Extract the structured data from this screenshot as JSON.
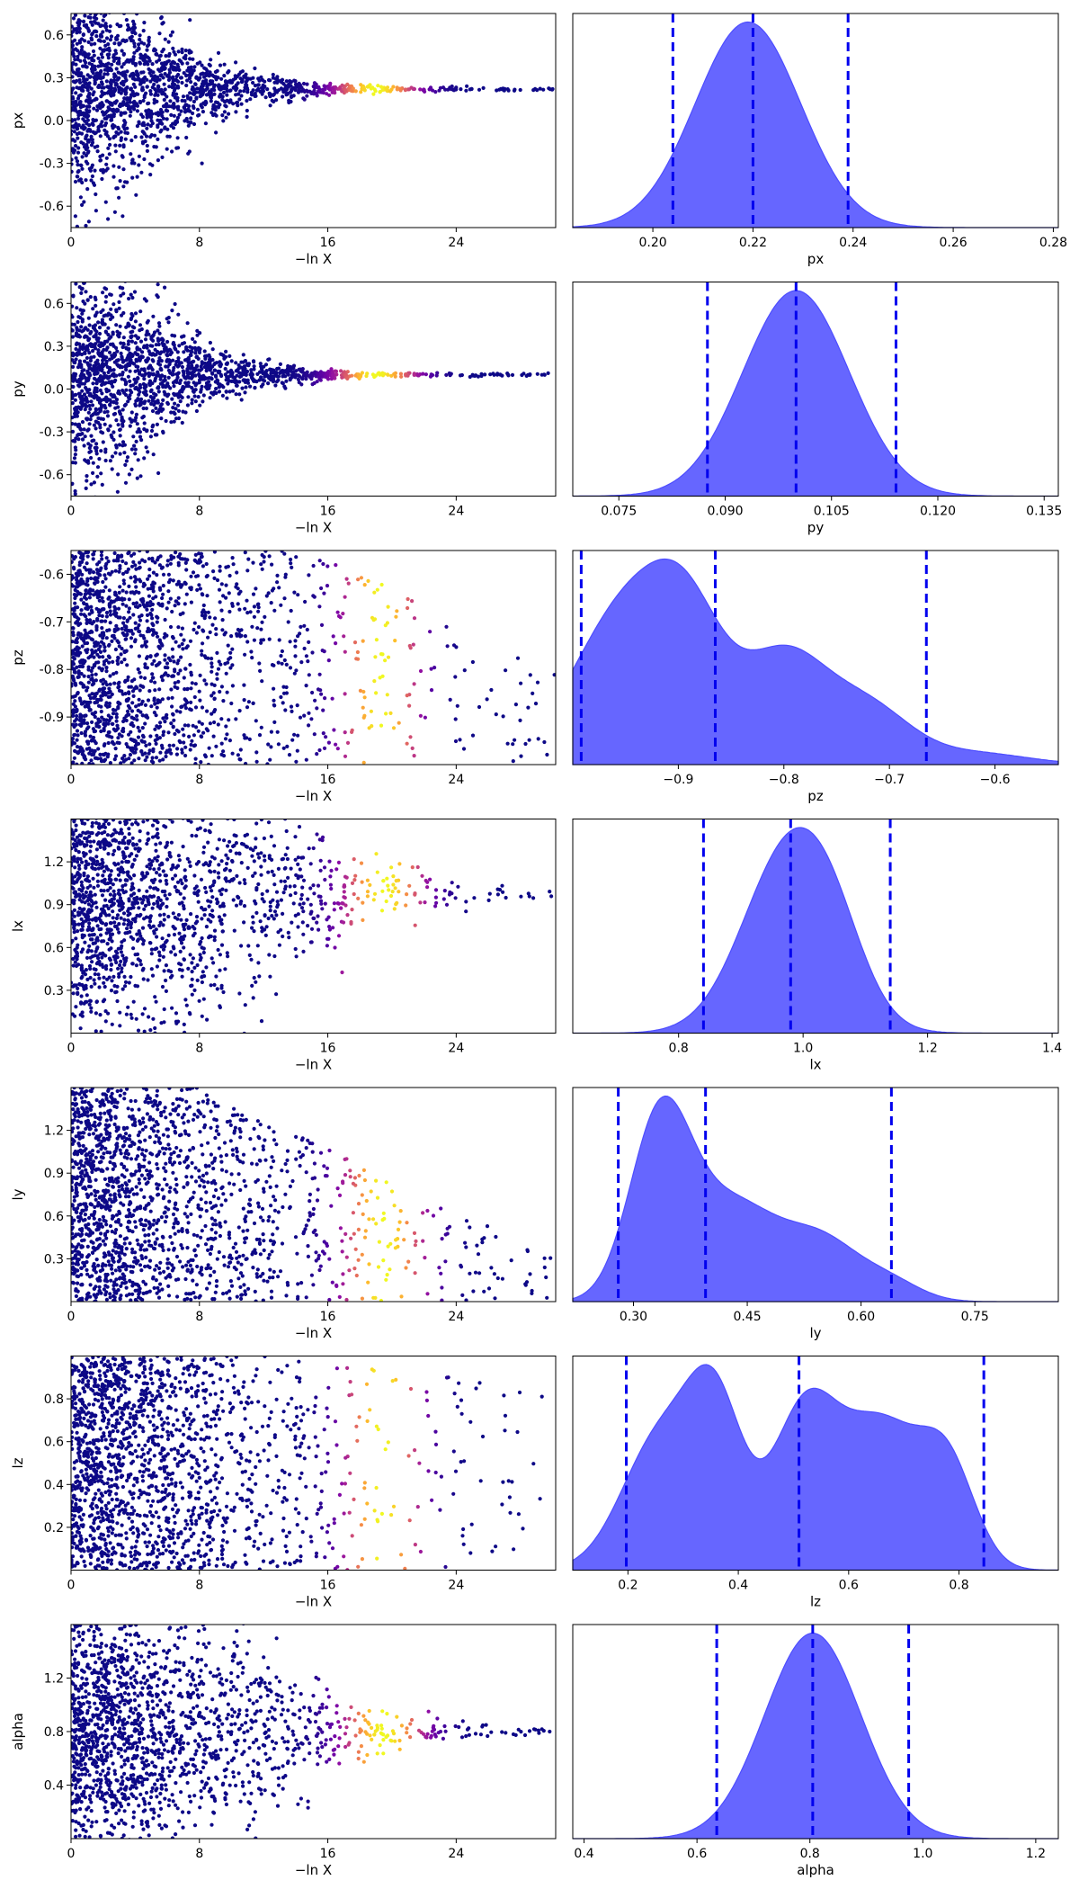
{
  "colors": {
    "density_fill": "#6666ff",
    "density_edge": "#4d4dff",
    "quantile_line": "#0000ee",
    "trace_colormap": "plasma",
    "background": "#ffffff"
  },
  "chart_data": [
    {
      "type": "scatter",
      "name": "trace-px",
      "xlabel": "−ln X",
      "ylabel": "px",
      "xlim": [
        0,
        30.2
      ],
      "ylim": [
        -0.75,
        0.75
      ],
      "xticks": [
        "0",
        "8",
        "16",
        "24"
      ],
      "xtick_values": [
        0,
        8,
        16,
        24
      ],
      "yticks": [
        "-0.6",
        "-0.3",
        "0.0",
        "0.3",
        "0.6"
      ],
      "ytick_values": [
        -0.6,
        -0.3,
        0.0,
        0.3,
        0.6
      ],
      "converged_value": 0.22,
      "initial_spread": 0.75,
      "width_profile": [
        [
          0,
          1.0
        ],
        [
          4,
          0.72
        ],
        [
          8,
          0.32
        ],
        [
          12,
          0.12
        ],
        [
          16,
          0.05
        ],
        [
          20,
          0.025
        ],
        [
          24,
          0.02
        ],
        [
          30,
          0.01
        ]
      ],
      "bright_center": 19.0,
      "bright_width": 2.5,
      "max_x": 30.2,
      "grid": false
    },
    {
      "type": "area",
      "name": "density-px",
      "xlabel": "px",
      "xlim": [
        0.184,
        0.281
      ],
      "xticks": [
        "0.20",
        "0.22",
        "0.24",
        "0.26",
        "0.28"
      ],
      "xtick_values": [
        0.2,
        0.22,
        0.24,
        0.26,
        0.28
      ],
      "quantiles": [
        0.204,
        0.22,
        0.239
      ],
      "peaks": [
        [
          0.219,
          0.0105,
          1.0
        ]
      ],
      "grid": false
    },
    {
      "type": "scatter",
      "name": "trace-py",
      "xlabel": "−ln X",
      "ylabel": "py",
      "xlim": [
        0,
        30.2
      ],
      "ylim": [
        -0.75,
        0.75
      ],
      "xticks": [
        "0",
        "8",
        "16",
        "24"
      ],
      "xtick_values": [
        0,
        8,
        16,
        24
      ],
      "yticks": [
        "-0.6",
        "-0.3",
        "0.0",
        "0.3",
        "0.6"
      ],
      "ytick_values": [
        -0.6,
        -0.3,
        0.0,
        0.3,
        0.6
      ],
      "converged_value": 0.1,
      "initial_spread": 0.75,
      "width_profile": [
        [
          0,
          1.0
        ],
        [
          4,
          0.7
        ],
        [
          8,
          0.3
        ],
        [
          12,
          0.1
        ],
        [
          16,
          0.04
        ],
        [
          20,
          0.02
        ],
        [
          24,
          0.015
        ],
        [
          30,
          0.01
        ]
      ],
      "bright_center": 19.0,
      "bright_width": 2.5,
      "max_x": 30.2,
      "grid": false
    },
    {
      "type": "area",
      "name": "density-py",
      "xlabel": "py",
      "xlim": [
        0.0685,
        0.137
      ],
      "xticks": [
        "0.075",
        "0.090",
        "0.105",
        "0.120",
        "0.135"
      ],
      "xtick_values": [
        0.075,
        0.09,
        0.105,
        0.12,
        0.135
      ],
      "quantiles": [
        0.0875,
        0.1,
        0.1141
      ],
      "peaks": [
        [
          0.1,
          0.0075,
          1.0
        ]
      ],
      "grid": false
    },
    {
      "type": "scatter",
      "name": "trace-pz",
      "xlabel": "−ln X",
      "ylabel": "pz",
      "xlim": [
        0,
        30.2
      ],
      "ylim": [
        -1.0,
        -0.55
      ],
      "xticks": [
        "0",
        "8",
        "16",
        "24"
      ],
      "xtick_values": [
        0,
        8,
        16,
        24
      ],
      "yticks": [
        "-0.6",
        "-0.7",
        "-0.8",
        "-0.9"
      ],
      "ytick_values": [
        -0.6,
        -0.7,
        -0.8,
        -0.9
      ],
      "band": true,
      "band_bottom": -1.0,
      "band_top": -0.55,
      "band_taper_start": 16,
      "band_top_end": -0.8,
      "bright_center": 19.3,
      "bright_width": 2.3,
      "max_x": 30.2,
      "grid": false
    },
    {
      "type": "area",
      "name": "density-pz",
      "xlabel": "pz",
      "xlim": [
        -1.0,
        -0.54
      ],
      "xticks": [
        "−0.9",
        "−0.8",
        "−0.7",
        "−0.6"
      ],
      "xtick_values": [
        -0.9,
        -0.8,
        -0.7,
        -0.6
      ],
      "quantiles": [
        -0.992,
        -0.865,
        -0.665
      ],
      "peaks": [
        [
          -0.95,
          0.05,
          0.8
        ],
        [
          -0.89,
          0.035,
          0.55
        ],
        [
          -0.8,
          0.04,
          0.55
        ],
        [
          -0.72,
          0.04,
          0.28
        ],
        [
          -0.62,
          0.05,
          0.06
        ]
      ],
      "grid": false
    },
    {
      "type": "scatter",
      "name": "trace-lx",
      "xlabel": "−ln X",
      "ylabel": "lx",
      "xlim": [
        0,
        30.2
      ],
      "ylim": [
        0.0,
        1.5
      ],
      "xticks": [
        "0",
        "8",
        "16",
        "24"
      ],
      "xtick_values": [
        0,
        8,
        16,
        24
      ],
      "yticks": [
        "0.3",
        "0.6",
        "0.9",
        "1.2"
      ],
      "ytick_values": [
        0.3,
        0.6,
        0.9,
        1.2
      ],
      "converged_value": 0.98,
      "initial_spread": 1.0,
      "width_profile": [
        [
          0,
          1.0
        ],
        [
          8,
          0.8
        ],
        [
          12,
          0.55
        ],
        [
          16,
          0.38
        ],
        [
          20,
          0.2
        ],
        [
          24,
          0.1
        ],
        [
          28,
          0.05
        ],
        [
          30,
          0.02
        ]
      ],
      "bright_center": 19.5,
      "bright_width": 2.5,
      "max_x": 30.2,
      "grid": false
    },
    {
      "type": "area",
      "name": "density-lx",
      "xlabel": "lx",
      "xlim": [
        0.63,
        1.41
      ],
      "xticks": [
        "0.8",
        "1.0",
        "1.2",
        "1.4"
      ],
      "xtick_values": [
        0.8,
        1.0,
        1.2,
        1.4
      ],
      "quantiles": [
        0.84,
        0.98,
        1.14
      ],
      "peaks": [
        [
          0.98,
          0.075,
          1.0
        ],
        [
          1.05,
          0.05,
          0.22
        ]
      ],
      "grid": false
    },
    {
      "type": "scatter",
      "name": "trace-ly",
      "xlabel": "−ln X",
      "ylabel": "ly",
      "xlim": [
        0,
        30.2
      ],
      "ylim": [
        0.0,
        1.5
      ],
      "xticks": [
        "0",
        "8",
        "16",
        "24"
      ],
      "xtick_values": [
        0,
        8,
        16,
        24
      ],
      "yticks": [
        "0.3",
        "0.6",
        "0.9",
        "1.2"
      ],
      "ytick_values": [
        0.3,
        0.6,
        0.9,
        1.2
      ],
      "band": true,
      "band_bottom": 0.0,
      "band_top": 1.5,
      "band_taper_start": 8,
      "band_top_end": 0.3,
      "bright_center": 19.5,
      "bright_width": 2.5,
      "max_x": 30.2,
      "grid": false
    },
    {
      "type": "area",
      "name": "density-ly",
      "xlabel": "ly",
      "xlim": [
        0.22,
        0.86
      ],
      "xticks": [
        "0.30",
        "0.45",
        "0.60",
        "0.75"
      ],
      "xtick_values": [
        0.3,
        0.45,
        0.6,
        0.75
      ],
      "quantiles": [
        0.28,
        0.395,
        0.64
      ],
      "peaks": [
        [
          0.335,
          0.04,
          1.0
        ],
        [
          0.43,
          0.06,
          0.55
        ],
        [
          0.55,
          0.05,
          0.32
        ],
        [
          0.64,
          0.04,
          0.1
        ]
      ],
      "grid": false
    },
    {
      "type": "scatter",
      "name": "trace-lz",
      "xlabel": "−ln X",
      "ylabel": "lz",
      "xlim": [
        0,
        30.2
      ],
      "ylim": [
        0.0,
        1.0
      ],
      "xticks": [
        "0",
        "8",
        "16",
        "24"
      ],
      "xtick_values": [
        0,
        8,
        16,
        24
      ],
      "yticks": [
        "0.2",
        "0.4",
        "0.6",
        "0.8"
      ],
      "ytick_values": [
        0.2,
        0.4,
        0.6,
        0.8
      ],
      "band": true,
      "band_bottom": 0.0,
      "band_top": 1.0,
      "band_taper_start": 12,
      "band_top_end": 0.85,
      "bright_center": 19.4,
      "bright_width": 2.3,
      "max_x": 30.2,
      "grid": false
    },
    {
      "type": "area",
      "name": "density-lz",
      "xlabel": "lz",
      "xlim": [
        0.1,
        0.98
      ],
      "xticks": [
        "0.2",
        "0.4",
        "0.6",
        "0.8"
      ],
      "xtick_values": [
        0.2,
        0.4,
        0.6,
        0.8
      ],
      "quantiles": [
        0.197,
        0.51,
        0.845
      ],
      "peaks": [
        [
          0.26,
          0.07,
          0.55
        ],
        [
          0.36,
          0.05,
          0.6
        ],
        [
          0.52,
          0.06,
          0.65
        ],
        [
          0.66,
          0.07,
          0.58
        ],
        [
          0.78,
          0.05,
          0.4
        ]
      ],
      "grid": false
    },
    {
      "type": "scatter",
      "name": "trace-alpha",
      "xlabel": "−ln X",
      "ylabel": "alpha",
      "xlim": [
        0,
        30.2
      ],
      "ylim": [
        0.0,
        1.6
      ],
      "xticks": [
        "0",
        "8",
        "16",
        "24"
      ],
      "xtick_values": [
        0,
        8,
        16,
        24
      ],
      "yticks": [
        "0.4",
        "0.8",
        "1.2"
      ],
      "ytick_values": [
        0.4,
        0.8,
        1.2
      ],
      "converged_value": 0.8,
      "initial_spread": 0.85,
      "width_profile": [
        [
          0,
          1.0
        ],
        [
          10,
          0.95
        ],
        [
          14,
          0.5
        ],
        [
          18,
          0.22
        ],
        [
          22,
          0.12
        ],
        [
          26,
          0.06
        ],
        [
          30,
          0.02
        ]
      ],
      "bright_center": 19.5,
      "bright_width": 2.5,
      "max_x": 30.2,
      "grid": false
    },
    {
      "type": "area",
      "name": "density-alpha",
      "xlabel": "alpha",
      "xlim": [
        0.38,
        1.24
      ],
      "xticks": [
        "0.4",
        "0.6",
        "0.8",
        "1.0",
        "1.2"
      ],
      "xtick_values": [
        0.4,
        0.6,
        0.8,
        1.0,
        1.2
      ],
      "quantiles": [
        0.635,
        0.805,
        0.975
      ],
      "peaks": [
        [
          0.805,
          0.085,
          1.0
        ]
      ],
      "grid": false
    }
  ]
}
